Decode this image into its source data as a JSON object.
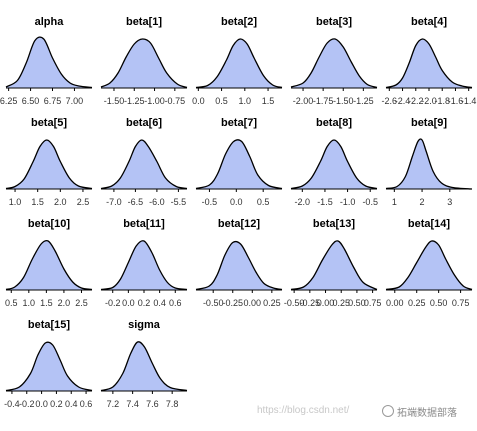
{
  "chart_data": [
    {
      "type": "area",
      "title": "alpha",
      "ticks": [
        "6.25",
        "6.50",
        "6.75",
        "7.00"
      ],
      "tick_values": [
        6.25,
        6.5,
        6.75,
        7.0
      ],
      "xlim": [
        6.22,
        7.2
      ],
      "x": [
        6.22,
        6.35,
        6.45,
        6.55,
        6.65,
        6.75,
        6.85,
        6.95,
        7.05,
        7.2
      ],
      "y": [
        0.02,
        0.15,
        0.5,
        0.95,
        0.98,
        0.6,
        0.28,
        0.1,
        0.04,
        0.01
      ],
      "grid": false
    },
    {
      "type": "area",
      "title": "beta[1]",
      "ticks": [
        "-1.50",
        "-1.25",
        "-1.00",
        "-0.75"
      ],
      "tick_values": [
        -1.5,
        -1.25,
        -1.0,
        -0.75
      ],
      "xlim": [
        -1.66,
        -0.6
      ],
      "x": [
        -1.66,
        -1.55,
        -1.45,
        -1.35,
        -1.25,
        -1.15,
        -1.05,
        -0.95,
        -0.85,
        -0.72,
        -0.6
      ],
      "y": [
        0.02,
        0.1,
        0.3,
        0.62,
        0.88,
        0.98,
        0.9,
        0.6,
        0.3,
        0.08,
        0.01
      ],
      "grid": false
    },
    {
      "type": "area",
      "title": "beta[2]",
      "ticks": [
        "0.0",
        "0.5",
        "1.0",
        "1.5"
      ],
      "tick_values": [
        0.0,
        0.5,
        1.0,
        1.5
      ],
      "xlim": [
        -0.05,
        1.8
      ],
      "x": [
        -0.05,
        0.2,
        0.4,
        0.6,
        0.75,
        0.9,
        1.05,
        1.2,
        1.4,
        1.6,
        1.8
      ],
      "y": [
        0.01,
        0.05,
        0.22,
        0.55,
        0.85,
        0.98,
        0.88,
        0.6,
        0.25,
        0.06,
        0.01
      ],
      "grid": false
    },
    {
      "type": "area",
      "title": "beta[3]",
      "ticks": [
        "-2.00",
        "-1.75",
        "-1.50",
        "-1.25"
      ],
      "tick_values": [
        -2.0,
        -1.75,
        -1.5,
        -1.25
      ],
      "xlim": [
        -2.15,
        -1.08
      ],
      "x": [
        -2.15,
        -2.0,
        -1.9,
        -1.8,
        -1.7,
        -1.6,
        -1.5,
        -1.4,
        -1.3,
        -1.2,
        -1.08
      ],
      "y": [
        0.02,
        0.1,
        0.3,
        0.62,
        0.9,
        0.98,
        0.82,
        0.52,
        0.24,
        0.07,
        0.01
      ],
      "grid": false
    },
    {
      "type": "area",
      "title": "beta[4]",
      "ticks": [
        "-2.6",
        "-2.4",
        "-2.2",
        "-2.0",
        "-1.8",
        "-1.6",
        "-1.4"
      ],
      "tick_values": [
        -2.6,
        -2.4,
        -2.2,
        -2.0,
        -1.8,
        -1.6,
        -1.4
      ],
      "xlim": [
        -2.65,
        -1.35
      ],
      "x": [
        -2.65,
        -2.5,
        -2.4,
        -2.3,
        -2.2,
        -2.1,
        -2.0,
        -1.9,
        -1.8,
        -1.65,
        -1.5,
        -1.35
      ],
      "y": [
        0.01,
        0.06,
        0.2,
        0.5,
        0.85,
        0.98,
        0.88,
        0.62,
        0.35,
        0.12,
        0.04,
        0.01
      ],
      "grid": false
    },
    {
      "type": "area",
      "title": "beta[5]",
      "ticks": [
        "1.0",
        "1.5",
        "2.0",
        "2.5"
      ],
      "tick_values": [
        1.0,
        1.5,
        2.0,
        2.5
      ],
      "xlim": [
        0.8,
        2.7
      ],
      "x": [
        0.8,
        1.0,
        1.2,
        1.4,
        1.55,
        1.7,
        1.85,
        2.0,
        2.2,
        2.4,
        2.7
      ],
      "y": [
        0.01,
        0.05,
        0.2,
        0.55,
        0.85,
        0.98,
        0.85,
        0.55,
        0.22,
        0.06,
        0.01
      ],
      "grid": false
    },
    {
      "type": "area",
      "title": "beta[6]",
      "ticks": [
        "-7.0",
        "-6.5",
        "-6.0",
        "-5.5"
      ],
      "tick_values": [
        -7.0,
        -6.5,
        -6.0,
        -5.5
      ],
      "xlim": [
        -7.3,
        -5.3
      ],
      "x": [
        -7.3,
        -7.05,
        -6.85,
        -6.65,
        -6.5,
        -6.35,
        -6.2,
        -6.0,
        -5.8,
        -5.55,
        -5.3
      ],
      "y": [
        0.01,
        0.06,
        0.22,
        0.55,
        0.85,
        0.98,
        0.85,
        0.55,
        0.22,
        0.05,
        0.01
      ],
      "grid": false
    },
    {
      "type": "area",
      "title": "beta[7]",
      "ticks": [
        "-0.5",
        "0.0",
        "0.5"
      ],
      "tick_values": [
        -0.5,
        0.0,
        0.5
      ],
      "xlim": [
        -0.75,
        0.85
      ],
      "x": [
        -0.75,
        -0.5,
        -0.35,
        -0.2,
        -0.05,
        0.1,
        0.25,
        0.4,
        0.6,
        0.85
      ],
      "y": [
        0.01,
        0.08,
        0.3,
        0.7,
        0.95,
        0.95,
        0.65,
        0.28,
        0.07,
        0.01
      ],
      "grid": false
    },
    {
      "type": "area",
      "title": "beta[8]",
      "ticks": [
        "-2.0",
        "-1.5",
        "-1.0",
        "-0.5"
      ],
      "tick_values": [
        -2.0,
        -1.5,
        -1.0,
        -0.5
      ],
      "xlim": [
        -2.25,
        -0.35
      ],
      "x": [
        -2.25,
        -2.0,
        -1.8,
        -1.6,
        -1.45,
        -1.3,
        -1.15,
        -1.0,
        -0.8,
        -0.6,
        -0.35
      ],
      "y": [
        0.01,
        0.06,
        0.22,
        0.55,
        0.85,
        0.98,
        0.85,
        0.55,
        0.22,
        0.06,
        0.01
      ],
      "grid": false
    },
    {
      "type": "area",
      "title": "beta[9]",
      "ticks": [
        "1",
        "2",
        "3"
      ],
      "tick_values": [
        1,
        2,
        3
      ],
      "xlim": [
        0.7,
        3.8
      ],
      "x": [
        0.7,
        1.1,
        1.4,
        1.65,
        1.85,
        2.0,
        2.15,
        2.4,
        2.7,
        3.1,
        3.8
      ],
      "y": [
        0.01,
        0.05,
        0.25,
        0.65,
        0.95,
        0.98,
        0.75,
        0.35,
        0.12,
        0.03,
        0.0
      ],
      "grid": false
    },
    {
      "type": "area",
      "title": "beta[10]",
      "ticks": [
        "0.5",
        "1.0",
        "1.5",
        "2.0",
        "2.5"
      ],
      "tick_values": [
        0.5,
        1.0,
        1.5,
        2.0,
        2.5
      ],
      "xlim": [
        0.35,
        2.8
      ],
      "x": [
        0.35,
        0.6,
        0.85,
        1.1,
        1.35,
        1.55,
        1.75,
        2.0,
        2.25,
        2.5,
        2.8
      ],
      "y": [
        0.01,
        0.06,
        0.25,
        0.62,
        0.92,
        0.98,
        0.78,
        0.42,
        0.16,
        0.04,
        0.01
      ],
      "grid": false
    },
    {
      "type": "area",
      "title": "beta[11]",
      "ticks": [
        "-0.2",
        "0.0",
        "0.2",
        "0.4",
        "0.6"
      ],
      "tick_values": [
        -0.2,
        0.0,
        0.2,
        0.4,
        0.6
      ],
      "xlim": [
        -0.35,
        0.75
      ],
      "x": [
        -0.35,
        -0.2,
        -0.1,
        0.0,
        0.1,
        0.2,
        0.3,
        0.4,
        0.5,
        0.6,
        0.75
      ],
      "y": [
        0.01,
        0.05,
        0.22,
        0.55,
        0.88,
        0.98,
        0.75,
        0.4,
        0.15,
        0.04,
        0.01
      ],
      "grid": false
    },
    {
      "type": "area",
      "title": "beta[12]",
      "ticks": [
        "-0.50",
        "-0.25",
        "0.00",
        "0.25"
      ],
      "tick_values": [
        -0.5,
        -0.25,
        0.0,
        0.25
      ],
      "xlim": [
        -0.72,
        0.38
      ],
      "x": [
        -0.72,
        -0.55,
        -0.45,
        -0.35,
        -0.25,
        -0.15,
        -0.05,
        0.05,
        0.15,
        0.27,
        0.38
      ],
      "y": [
        0.01,
        0.08,
        0.3,
        0.7,
        0.95,
        0.92,
        0.65,
        0.35,
        0.13,
        0.04,
        0.01
      ],
      "grid": false
    },
    {
      "type": "area",
      "title": "beta[13]",
      "ticks": [
        "-0.50",
        "-0.25",
        "0.00",
        "0.25",
        "0.50",
        "0.75"
      ],
      "tick_values": [
        -0.5,
        -0.25,
        0.0,
        0.25,
        0.5,
        0.75
      ],
      "xlim": [
        -0.55,
        0.82
      ],
      "x": [
        -0.55,
        -0.35,
        -0.2,
        -0.05,
        0.1,
        0.2,
        0.3,
        0.45,
        0.6,
        0.82
      ],
      "y": [
        0.01,
        0.06,
        0.25,
        0.6,
        0.9,
        0.98,
        0.82,
        0.45,
        0.15,
        0.01
      ],
      "grid": false
    },
    {
      "type": "area",
      "title": "beta[14]",
      "ticks": [
        "0.00",
        "0.25",
        "0.50",
        "0.75"
      ],
      "tick_values": [
        0.0,
        0.25,
        0.5,
        0.75
      ],
      "xlim": [
        -0.1,
        0.88
      ],
      "x": [
        -0.1,
        0.05,
        0.15,
        0.25,
        0.35,
        0.42,
        0.5,
        0.58,
        0.68,
        0.78,
        0.88
      ],
      "y": [
        0.01,
        0.06,
        0.25,
        0.55,
        0.85,
        0.98,
        0.9,
        0.62,
        0.3,
        0.08,
        0.01
      ],
      "grid": false
    },
    {
      "type": "area",
      "title": "beta[15]",
      "ticks": [
        "-0.4",
        "-0.2",
        "0.0",
        "0.2",
        "0.4",
        "0.6"
      ],
      "tick_values": [
        -0.4,
        -0.2,
        0.0,
        0.2,
        0.4,
        0.6
      ],
      "xlim": [
        -0.48,
        0.68
      ],
      "x": [
        -0.48,
        -0.3,
        -0.15,
        -0.05,
        0.05,
        0.15,
        0.25,
        0.35,
        0.5,
        0.68
      ],
      "y": [
        0.01,
        0.08,
        0.35,
        0.72,
        0.96,
        0.92,
        0.62,
        0.3,
        0.08,
        0.01
      ],
      "grid": false
    },
    {
      "type": "area",
      "title": "sigma",
      "ticks": [
        "7.2",
        "7.4",
        "7.6",
        "7.8"
      ],
      "tick_values": [
        7.2,
        7.4,
        7.6,
        7.8
      ],
      "xlim": [
        7.08,
        7.95
      ],
      "x": [
        7.08,
        7.2,
        7.3,
        7.38,
        7.45,
        7.52,
        7.6,
        7.68,
        7.78,
        7.95
      ],
      "y": [
        0.01,
        0.08,
        0.35,
        0.75,
        0.98,
        0.88,
        0.55,
        0.25,
        0.07,
        0.01
      ],
      "grid": false
    }
  ],
  "colors": {
    "fill": "#b4c3f5",
    "stroke": "#000000",
    "axis": "#000000",
    "tick_text": "#333333"
  },
  "watermark": {
    "url": "https://blog.csdn.net/",
    "brand": "拓端数据部落"
  }
}
